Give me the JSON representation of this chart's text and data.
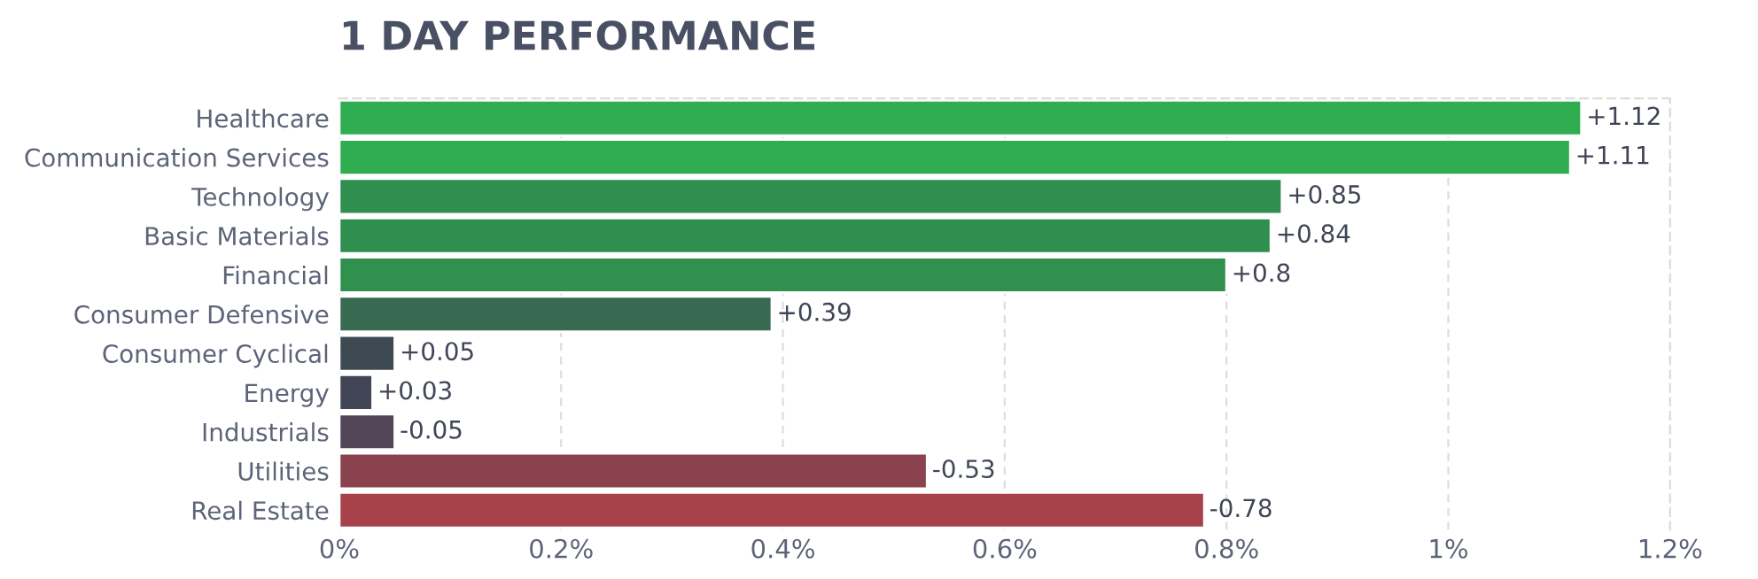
{
  "chart_data": {
    "type": "bar",
    "orientation": "horizontal",
    "title": "1 DAY PERFORMANCE",
    "categories": [
      "Healthcare",
      "Communication Services",
      "Technology",
      "Basic Materials",
      "Financial",
      "Consumer Defensive",
      "Consumer Cyclical",
      "Energy",
      "Industrials",
      "Utilities",
      "Real Estate"
    ],
    "values": [
      1.12,
      1.11,
      0.85,
      0.84,
      0.8,
      0.39,
      0.05,
      0.03,
      -0.05,
      -0.53,
      -0.78
    ],
    "base": [
      0,
      0,
      0,
      0,
      0,
      0,
      0,
      0,
      0.05,
      0.53,
      0.78
    ],
    "value_labels": [
      "+1.12",
      "+1.11",
      "+0.85",
      "+0.84",
      "+0.8",
      "+0.39",
      "+0.05",
      "+0.03",
      "-0.05",
      "-0.53",
      "-0.78"
    ],
    "colors": [
      "#30ad51",
      "#30ad51",
      "#2f8f4e",
      "#2f8f4e",
      "#30914f",
      "#386a52",
      "#3e4a52",
      "#414556",
      "#514556",
      "#8a434e",
      "#a7424b"
    ],
    "xlim": [
      0,
      1.2
    ],
    "xticks": [
      {
        "value": 0,
        "label": "0%"
      },
      {
        "value": 0.2,
        "label": "0.2%"
      },
      {
        "value": 0.4,
        "label": "0.4%"
      },
      {
        "value": 0.6,
        "label": "0.6%"
      },
      {
        "value": 0.8,
        "label": "0.8%"
      },
      {
        "value": 1,
        "label": "1%"
      },
      {
        "value": 1.2,
        "label": "1.2%"
      }
    ],
    "grid": "x"
  }
}
